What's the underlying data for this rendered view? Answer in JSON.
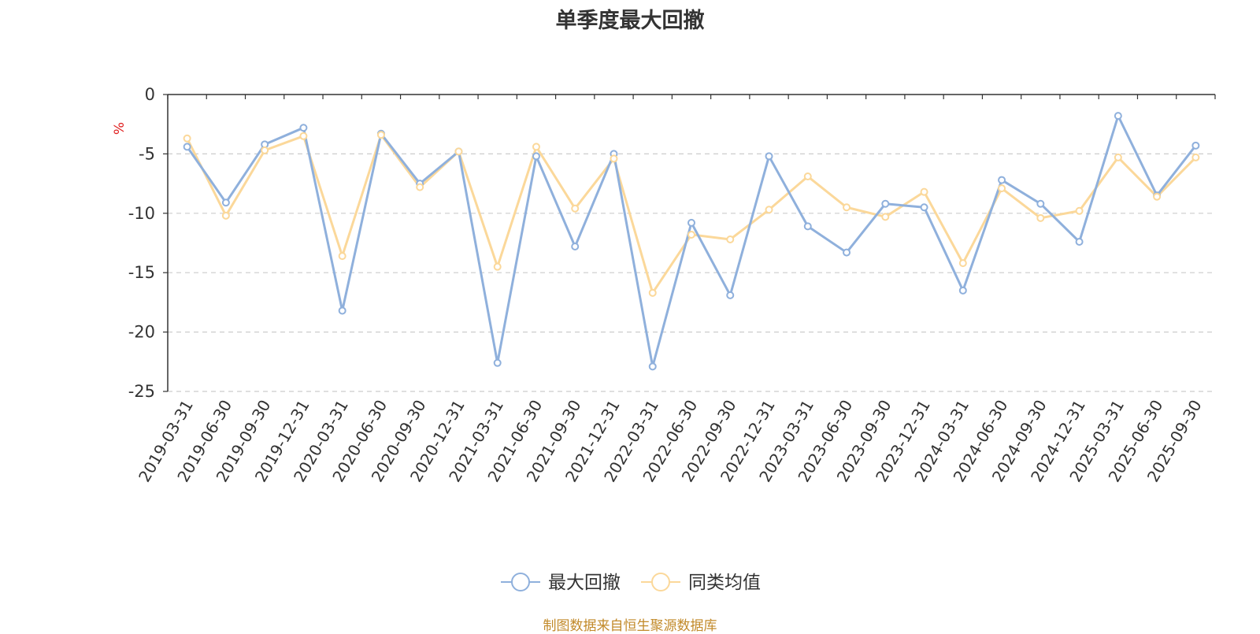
{
  "chart_data": {
    "type": "line",
    "title": "单季度最大回撤",
    "ylabel": "%",
    "xlabel": "",
    "ylim": [
      -25,
      0
    ],
    "yticks": [
      0,
      -5,
      -10,
      -15,
      -20,
      -25
    ],
    "ytick_labels": [
      "0",
      "-5",
      "-10",
      "-15",
      "-20",
      "-25"
    ],
    "grid": true,
    "legend_position": "bottom-center",
    "categories": [
      "2019-03-31",
      "2019-06-30",
      "2019-09-30",
      "2019-12-31",
      "2020-03-31",
      "2020-06-30",
      "2020-09-30",
      "2020-12-31",
      "2021-03-31",
      "2021-06-30",
      "2021-09-30",
      "2021-12-31",
      "2022-03-31",
      "2022-06-30",
      "2022-09-30",
      "2022-12-31",
      "2023-03-31",
      "2023-06-30",
      "2023-09-30",
      "2023-12-31",
      "2024-03-31",
      "2024-06-30",
      "2024-09-30",
      "2024-12-31",
      "2025-03-31",
      "2025-06-30",
      "2025-09-30"
    ],
    "series": [
      {
        "name": "最大回撤",
        "color": "#8fb0dc",
        "values": [
          -4.4,
          -9.1,
          -4.2,
          -2.8,
          -18.2,
          -3.3,
          -7.5,
          -4.8,
          -22.6,
          -5.2,
          -12.8,
          -5.0,
          -22.9,
          -10.8,
          -16.9,
          -5.2,
          -11.1,
          -13.3,
          -9.2,
          -9.5,
          -16.5,
          -7.2,
          -9.2,
          -12.4,
          -1.8,
          -8.5,
          -4.3
        ]
      },
      {
        "name": "同类均值",
        "color": "#fbd89a",
        "values": [
          -3.7,
          -10.2,
          -4.7,
          -3.5,
          -13.6,
          -3.4,
          -7.8,
          -4.8,
          -14.5,
          -4.4,
          -9.6,
          -5.4,
          -16.7,
          -11.8,
          -12.2,
          -9.7,
          -6.9,
          -9.5,
          -10.3,
          -8.2,
          -14.2,
          -7.9,
          -10.4,
          -9.8,
          -5.3,
          -8.6,
          -5.3
        ]
      }
    ],
    "source_note": "制图数据来自恒生聚源数据库"
  }
}
